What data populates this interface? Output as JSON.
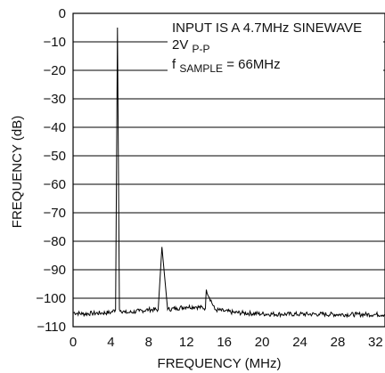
{
  "chart_data": {
    "type": "line",
    "title": "",
    "xlabel": "FREQUENCY (MHz)",
    "ylabel": "FREQUENCY (dB)",
    "xlim": [
      0,
      33
    ],
    "ylim": [
      -110,
      0
    ],
    "x_ticks": [
      "0",
      "4",
      "8",
      "12",
      "16",
      "20",
      "24",
      "28",
      "32"
    ],
    "y_ticks": [
      "0",
      "−10",
      "−20",
      "−30",
      "−40",
      "−50",
      "−60",
      "−70",
      "−80",
      "−90",
      "−100",
      "−110"
    ],
    "grid": "horizontal",
    "annotations": {
      "line1": "INPUT IS A 4.7MHz SINEWAVE",
      "line2_main": "2V",
      "line2_sub": "P-P",
      "line3_main": "f",
      "line3_sub": "SAMPLE",
      "line3_rest": " = 66MHz"
    },
    "series": [
      {
        "x": [
          0,
          1,
          2,
          3,
          4,
          4.5,
          4.7,
          4.9,
          5.5,
          6,
          7,
          8,
          9,
          9.4,
          10,
          11,
          12,
          13,
          14,
          14.1,
          15,
          16,
          17,
          18,
          20,
          22,
          24,
          26,
          28,
          30,
          32,
          33
        ],
        "y": [
          -105,
          -105.5,
          -105.3,
          -105.2,
          -105,
          -104,
          -5,
          -104,
          -105,
          -105,
          -104.5,
          -104,
          -104,
          -82,
          -104,
          -103.5,
          -103,
          -103,
          -103.5,
          -97,
          -104,
          -104.5,
          -105,
          -105.2,
          -105.5,
          -105.6,
          -105.6,
          -105.6,
          -105.7,
          -105.7,
          -105.7,
          -105.7
        ]
      }
    ]
  }
}
